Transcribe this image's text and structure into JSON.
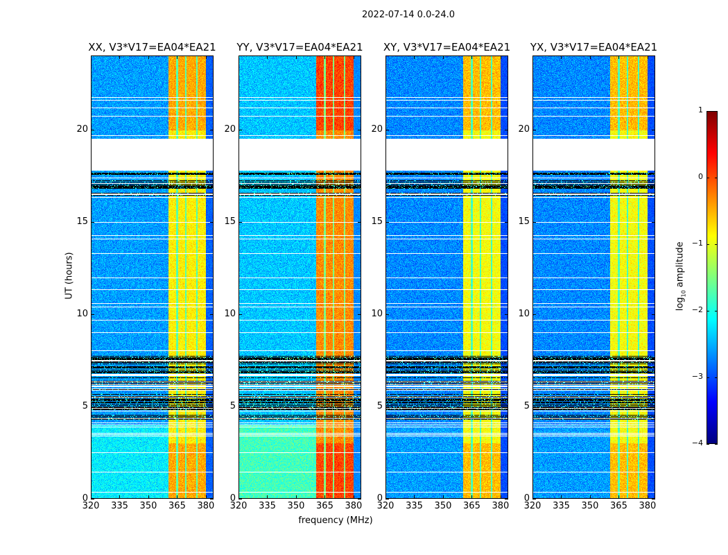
{
  "chart_data": {
    "type": "heatmap",
    "title": "2022-07-14 0.0-24.0",
    "xlabel": "frequency (MHz)",
    "ylabel": "UT (hours)",
    "xlim": [
      320,
      384
    ],
    "ylim": [
      0,
      24
    ],
    "xticks": [
      320,
      335,
      350,
      365,
      380
    ],
    "yticks": [
      0,
      5,
      10,
      15,
      20
    ],
    "grid": false,
    "panels": [
      {
        "title": "XX, V3*V17=EA04*EA21",
        "background_level": -2.6,
        "band_level": -0.8,
        "early_boost": 0.4
      },
      {
        "title": "YY, V3*V17=EA04*EA21",
        "background_level": -2.4,
        "band_level": -0.3,
        "early_boost": 0.6
      },
      {
        "title": "XY, V3*V17=EA04*EA21",
        "background_level": -2.7,
        "band_level": -0.9,
        "early_boost": 0.1
      },
      {
        "title": "YX, V3*V17=EA04*EA21",
        "background_level": -2.7,
        "band_level": -0.9,
        "early_boost": 0.1
      }
    ],
    "bright_band_mhz": [
      360.5,
      380
    ],
    "band_notches_mhz": [
      [
        364.6,
        365.5
      ],
      [
        369.2,
        370
      ],
      [
        375,
        375.8
      ]
    ],
    "no_data_hours": [
      17.8,
      19.55
    ],
    "flagged_hours": [
      [
        4.0,
        7.75
      ],
      [
        16.4,
        17.8
      ]
    ],
    "colorbar": {
      "range": [
        -4,
        1
      ],
      "ticks": [
        "1",
        "0",
        "−1",
        "−2",
        "−3",
        "−4"
      ],
      "tick_values": [
        1,
        0,
        -1,
        -2,
        -3,
        -4
      ],
      "label_main": "log",
      "label_sub": "10",
      "label_rest": " amplitude",
      "colormap": "jet"
    }
  }
}
